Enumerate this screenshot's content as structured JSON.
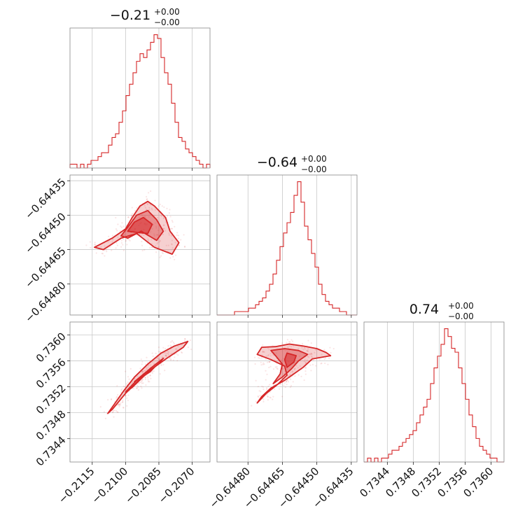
{
  "chart_data": {
    "type": "corner",
    "color": "#d62728",
    "grid": true,
    "parameters": [
      {
        "title": "−0.21",
        "title_upper": "+0.00",
        "title_lower": "−0.00",
        "range": [
          -0.2125,
          -0.2062
        ],
        "ticks": [
          -0.2115,
          -0.21,
          -0.2085,
          -0.207
        ],
        "tick_labels": [
          "−0.2115",
          "−0.2100",
          "−0.2085",
          "−0.2070"
        ],
        "hist_heights": [
          1,
          1,
          0,
          1,
          0,
          1,
          2,
          2,
          3,
          4,
          4,
          6,
          8,
          9,
          12,
          15,
          19,
          22,
          25,
          28,
          30,
          29,
          31,
          33,
          35,
          34,
          29,
          25,
          22,
          17,
          12,
          8,
          7,
          5,
          4,
          3,
          2,
          1,
          0,
          1
        ]
      },
      {
        "title": "−0.64",
        "title_upper": "+0.00",
        "title_lower": "−0.00",
        "range": [
          -0.644935,
          -0.644325
        ],
        "ticks": [
          -0.6448,
          -0.64465,
          -0.6445,
          -0.64435
        ],
        "tick_labels": [
          "−0.64480",
          "−0.64465",
          "−0.64450",
          "−0.64435"
        ],
        "hist_heights": [
          0,
          0,
          0,
          0,
          0,
          1,
          1,
          1,
          1,
          2,
          2,
          3,
          4,
          5,
          7,
          9,
          12,
          16,
          20,
          24,
          27,
          30,
          35,
          39,
          33,
          26,
          22,
          18,
          14,
          9,
          6,
          4,
          3,
          2,
          2,
          1,
          1,
          0,
          0,
          0
        ]
      },
      {
        "title": "0.74",
        "title_upper": "+0.00",
        "title_lower": "−0.00",
        "range": [
          0.73404,
          0.7362
        ],
        "ticks": [
          0.7344,
          0.7348,
          0.7352,
          0.7356,
          0.736
        ],
        "tick_labels": [
          "0.7344",
          "0.7348",
          "0.7352",
          "0.7356",
          "0.7360"
        ],
        "hist_heights": [
          0,
          1,
          0,
          1,
          0,
          1,
          1,
          2,
          3,
          3,
          4,
          5,
          6,
          7,
          8,
          10,
          12,
          14,
          16,
          20,
          24,
          27,
          30,
          34,
          32,
          29,
          28,
          24,
          20,
          16,
          12,
          9,
          6,
          4,
          3,
          2,
          1,
          1,
          0,
          0
        ]
      }
    ],
    "pairs": [
      {
        "row": 1,
        "col": 0,
        "scatter_center": [
          -0.2093,
          -0.644585
        ],
        "contours": [
          [
            [
              -0.2114,
              -0.64464
            ],
            [
              -0.2106,
              -0.6446
            ],
            [
              -0.21,
              -0.64456
            ],
            [
              -0.2097,
              -0.64451
            ],
            [
              -0.20935,
              -0.64446
            ],
            [
              -0.209,
              -0.64444
            ],
            [
              -0.2087,
              -0.64446
            ],
            [
              -0.2082,
              -0.64451
            ],
            [
              -0.208,
              -0.64457
            ],
            [
              -0.2076,
              -0.64462
            ],
            [
              -0.2079,
              -0.64467
            ],
            [
              -0.2087,
              -0.64464
            ],
            [
              -0.2095,
              -0.64458
            ],
            [
              -0.2102,
              -0.6446
            ],
            [
              -0.211,
              -0.64465
            ]
          ],
          [
            [
              -0.2102,
              -0.64459
            ],
            [
              -0.2098,
              -0.64454
            ],
            [
              -0.2095,
              -0.6445
            ],
            [
              -0.209,
              -0.64448
            ],
            [
              -0.2086,
              -0.64452
            ],
            [
              -0.2083,
              -0.64457
            ],
            [
              -0.2086,
              -0.64461
            ],
            [
              -0.2093,
              -0.64457
            ],
            [
              -0.2099,
              -0.6446
            ]
          ],
          [
            [
              -0.2099,
              -0.64457
            ],
            [
              -0.2096,
              -0.64453
            ],
            [
              -0.2092,
              -0.64451
            ],
            [
              -0.2088,
              -0.64454
            ],
            [
              -0.209,
              -0.64458
            ],
            [
              -0.2095,
              -0.644575
            ]
          ]
        ]
      },
      {
        "row": 2,
        "col": 0,
        "scatter_center": [
          -0.2091,
          0.73538
        ],
        "contours": [
          [
            [
              -0.2108,
              0.73479
            ],
            [
              -0.2101,
              0.73513
            ],
            [
              -0.2096,
              0.73535
            ],
            [
              -0.209,
              0.73555
            ],
            [
              -0.2084,
              0.73572
            ],
            [
              -0.2078,
              0.73583
            ],
            [
              -0.2072,
              0.7359
            ],
            [
              -0.2074,
              0.73581
            ],
            [
              -0.2081,
              0.73565
            ],
            [
              -0.2088,
              0.73548
            ],
            [
              -0.2094,
              0.7353
            ],
            [
              -0.21,
              0.7351
            ],
            [
              -0.2106,
              0.73485
            ]
          ],
          [
            [
              -0.21,
              0.73512
            ],
            [
              -0.2095,
              0.7353
            ],
            [
              -0.2089,
              0.73548
            ],
            [
              -0.2083,
              0.73564
            ],
            [
              -0.2085,
              0.73556
            ],
            [
              -0.2091,
              0.73539
            ],
            [
              -0.2097,
              0.73519
            ]
          ],
          [
            [
              -0.2096,
              0.73528
            ],
            [
              -0.2091,
              0.73542
            ],
            [
              -0.2087,
              0.7355
            ],
            [
              -0.2089,
              0.73543
            ],
            [
              -0.2094,
              0.73532
            ]
          ]
        ]
      },
      {
        "row": 2,
        "col": 1,
        "scatter_center": [
          -0.64459,
          0.73545
        ],
        "contours": [
          [
            [
              -0.64474,
              0.73581
            ],
            [
              -0.64468,
              0.73582
            ],
            [
              -0.64462,
              0.73586
            ],
            [
              -0.64456,
              0.73583
            ],
            [
              -0.6445,
              0.73579
            ],
            [
              -0.64446,
              0.73573
            ],
            [
              -0.64444,
              0.73568
            ],
            [
              -0.64452,
              0.73563
            ],
            [
              -0.64456,
              0.7355
            ],
            [
              -0.6446,
              0.7354
            ],
            [
              -0.64464,
              0.7353
            ],
            [
              -0.6447,
              0.73518
            ],
            [
              -0.64474,
              0.73505
            ],
            [
              -0.64476,
              0.73495
            ],
            [
              -0.64472,
              0.7351
            ],
            [
              -0.64467,
              0.73524
            ],
            [
              -0.64463,
              0.73538
            ],
            [
              -0.64464,
              0.73552
            ],
            [
              -0.6447,
              0.73562
            ],
            [
              -0.64476,
              0.7357
            ]
          ],
          [
            [
              -0.6447,
              0.73576
            ],
            [
              -0.64464,
              0.73579
            ],
            [
              -0.64458,
              0.73576
            ],
            [
              -0.64454,
              0.7357
            ],
            [
              -0.64458,
              0.7356
            ],
            [
              -0.64461,
              0.73548
            ],
            [
              -0.64465,
              0.73535
            ],
            [
              -0.64469,
              0.73525
            ],
            [
              -0.64466,
              0.7354
            ],
            [
              -0.64465,
              0.73555
            ],
            [
              -0.64468,
              0.73568
            ]
          ],
          [
            [
              -0.64463,
              0.73572
            ],
            [
              -0.64459,
              0.73568
            ],
            [
              -0.6446,
              0.73558
            ],
            [
              -0.64463,
              0.7355
            ],
            [
              -0.64464,
              0.73562
            ]
          ]
        ]
      }
    ]
  }
}
